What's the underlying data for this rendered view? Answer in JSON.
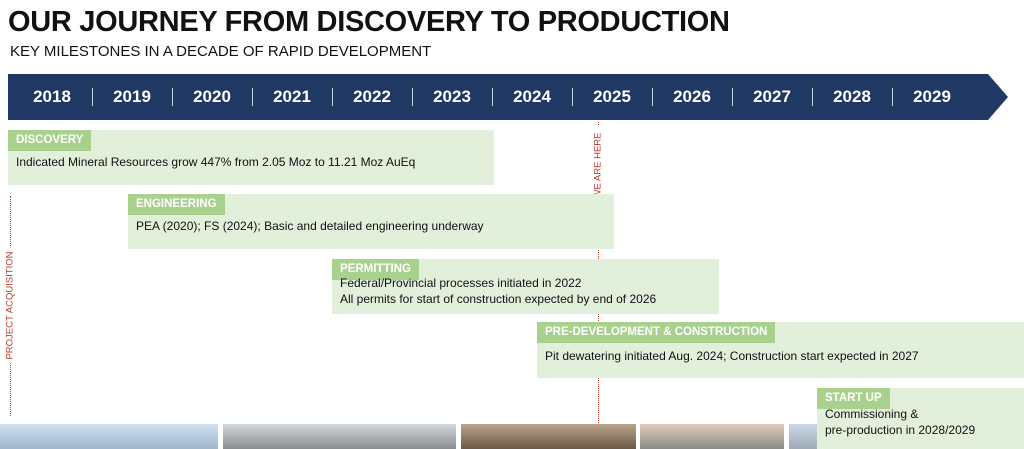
{
  "header": {
    "title": "OUR JOURNEY FROM DISCOVERY TO PRODUCTION",
    "subtitle": "KEY MILESTONES IN A DECADE OF RAPID DEVELOPMENT"
  },
  "timeline": {
    "years": [
      "2018",
      "2019",
      "2020",
      "2021",
      "2022",
      "2023",
      "2024",
      "2025",
      "2026",
      "2027",
      "2028",
      "2029"
    ]
  },
  "markers": {
    "current": "WE ARE HERE",
    "acquisition": "PROJECT ACQUISITION"
  },
  "phases": [
    {
      "label": "DISCOVERY",
      "lines": [
        "Indicated Mineral Resources grow 447% from 2.05 Moz to 11.21 Moz AuEq"
      ]
    },
    {
      "label": "ENGINEERING",
      "lines": [
        "PEA (2020); FS (2024); Basic and detailed engineering underway"
      ]
    },
    {
      "label": "PERMITTING",
      "lines": [
        "Federal/Provincial processes initiated in 2022",
        "All permits for start of construction expected by end of 2026"
      ]
    },
    {
      "label": "PRE-DEVELOPMENT & CONSTRUCTION",
      "lines": [
        "Pit dewatering initiated Aug. 2024; Construction start expected in 2027"
      ]
    },
    {
      "label": "START UP",
      "lines": [
        "Commissioning &",
        "pre-production in 2028/2029"
      ]
    }
  ]
}
